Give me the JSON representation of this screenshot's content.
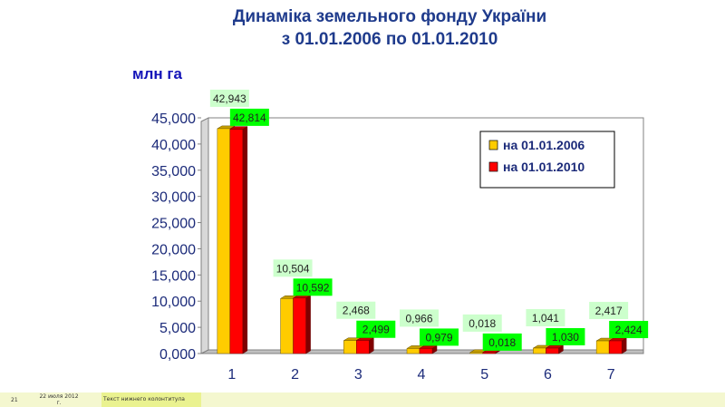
{
  "header": {
    "title_line1": "Динаміка земельного фонду України",
    "title_line2": "з 01.01.2006 по 01.01.2010",
    "unit": "млн га"
  },
  "chart_data": {
    "type": "bar",
    "categories": [
      "1",
      "2",
      "3",
      "4",
      "5",
      "6",
      "7"
    ],
    "series": [
      {
        "name": "на 01.01.2006",
        "values": [
          42.943,
          10.504,
          2.468,
          0.966,
          0.018,
          1.041,
          2.417
        ],
        "labels": [
          "42,943",
          "10,504",
          "2,468",
          "0,966",
          "0,018",
          "1,041",
          "2,417"
        ],
        "color": "#ffcc00"
      },
      {
        "name": "на 01.01.2010",
        "values": [
          42.814,
          10.592,
          2.499,
          0.979,
          0.018,
          1.03,
          2.424
        ],
        "labels": [
          "42,814",
          "10,592",
          "2,499",
          "0,979",
          "0,018",
          "1,030",
          "2,424"
        ],
        "color": "#ff0000"
      }
    ],
    "ylim": [
      0,
      45
    ],
    "yticks": [
      0,
      5,
      10,
      15,
      20,
      25,
      30,
      35,
      40,
      45
    ],
    "ytick_labels": [
      "0,000",
      "5,000",
      "10,000",
      "15,000",
      "20,000",
      "25,000",
      "30,000",
      "35,000",
      "40,000",
      "45,000"
    ],
    "legend_position": "top-right",
    "grid": false,
    "label_colors": {
      "series1": "#ccffcc",
      "series2": "#00ff00"
    }
  },
  "footer": {
    "slide_number": "21",
    "date": "22 июля 2012 г.",
    "text": "Текст нижнего колонтитула"
  }
}
